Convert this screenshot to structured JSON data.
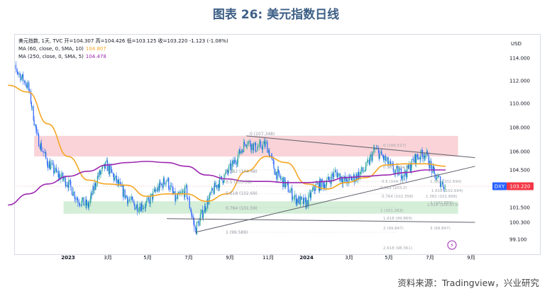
{
  "figure_title": "图表 26: 美元指数日线",
  "source": "资料来源：Tradingview，兴业研究",
  "legend": {
    "header": "美元指数, 1天, TVC  开=104.307  高=104.426  低=103.125  收=103.220  -1.123 (-1.08%)",
    "ma10_label": "MA (60, close, 0, SMA, 10)",
    "ma10_value": "104.807",
    "ma250_label": "MA (250, close, 0, SMA, 5)",
    "ma250_value": "104.478"
  },
  "colors": {
    "title": "#3d5f86",
    "up": "#26a69a",
    "down": "#2962ff",
    "ma60": "#f5a623",
    "ma250": "#9c27b0",
    "resistance_zone": "#f8cbd0",
    "support_zone": "#cdebd0",
    "price_badge": "#f23645",
    "fib": "#b2b5be"
  },
  "y_axis": {
    "unit": "USD",
    "ticks": [
      "114.000",
      "112.000",
      "110.000",
      "108.000",
      "106.000",
      "104.500",
      "103.220",
      "101.500",
      "100.300",
      "99.100"
    ]
  },
  "x_axis": {
    "ticks": [
      "2023",
      "3月",
      "5月",
      "7月",
      "9月",
      "11月",
      "2024",
      "3月",
      "5月",
      "7月",
      "9月"
    ]
  },
  "badges": {
    "symbol": "DXY",
    "last_price": "103.220"
  },
  "fib_left": {
    "labels": [
      "0 (107.348)",
      "0.382 (104.48)",
      "0.5 (103.59)",
      "0.618 (102.69)",
      "0.764 (101.59)",
      "1 (99.589)"
    ]
  },
  "fib_right": {
    "labels": [
      "0 (106.517)",
      "0.382 (104.9)",
      "0.5 (104.1)",
      "0.618 (103.2)",
      "0.764 (102.358)",
      "1 (101.263)",
      "1.382 (101.899)",
      "1.618 (100.673)",
      "1.618 (99.869)",
      "2 (99.847)",
      "2.618 (98.361)",
      "1.382 (102.694)",
      "1.618 (102.694)",
      "2 (101.899)",
      "3 (99.847)"
    ]
  },
  "chart_data": {
    "type": "candlestick",
    "title": "美元指数日线",
    "ylabel": "USD",
    "ylim": [
      99.1,
      114.3
    ],
    "x_labels": [
      "2023",
      "3月",
      "5月",
      "7月",
      "9月",
      "11月",
      "2024",
      "3月",
      "5月",
      "7月",
      "9月"
    ],
    "series": [
      {
        "name": "美元指数",
        "kind": "close",
        "points": [
          [
            "2022-10-01",
            113.5
          ],
          [
            "2022-10-15",
            112.9
          ],
          [
            "2022-11-01",
            111.5
          ],
          [
            "2022-11-15",
            107.2
          ],
          [
            "2022-12-01",
            105.1
          ],
          [
            "2022-12-15",
            104.2
          ],
          [
            "2023-01-01",
            103.5
          ],
          [
            "2023-01-15",
            102.2
          ],
          [
            "2023-02-01",
            101.6
          ],
          [
            "2023-02-15",
            103.9
          ],
          [
            "2023-03-01",
            104.9
          ],
          [
            "2023-03-15",
            103.7
          ],
          [
            "2023-04-01",
            102.3
          ],
          [
            "2023-04-15",
            101.6
          ],
          [
            "2023-05-01",
            101.7
          ],
          [
            "2023-05-15",
            102.8
          ],
          [
            "2023-06-01",
            103.8
          ],
          [
            "2023-06-15",
            102.1
          ],
          [
            "2023-07-01",
            102.9
          ],
          [
            "2023-07-15",
            99.7
          ],
          [
            "2023-08-01",
            101.8
          ],
          [
            "2023-08-15",
            103.2
          ],
          [
            "2023-09-01",
            104.2
          ],
          [
            "2023-09-15",
            105.3
          ],
          [
            "2023-10-01",
            106.9
          ],
          [
            "2023-10-15",
            106.3
          ],
          [
            "2023-11-01",
            106.6
          ],
          [
            "2023-11-15",
            104.3
          ],
          [
            "2023-12-01",
            103.3
          ],
          [
            "2023-12-15",
            102.2
          ],
          [
            "2024-01-01",
            101.8
          ],
          [
            "2024-01-15",
            103.2
          ],
          [
            "2024-02-01",
            103.5
          ],
          [
            "2024-02-15",
            104.3
          ],
          [
            "2024-03-01",
            103.6
          ],
          [
            "2024-03-15",
            103.9
          ],
          [
            "2024-04-01",
            104.6
          ],
          [
            "2024-04-15",
            106.2
          ],
          [
            "2024-05-01",
            105.3
          ],
          [
            "2024-05-15",
            104.4
          ],
          [
            "2024-06-01",
            104.2
          ],
          [
            "2024-06-15",
            105.4
          ],
          [
            "2024-07-01",
            105.9
          ],
          [
            "2024-07-15",
            104.1
          ],
          [
            "2024-08-01",
            103.2
          ]
        ]
      },
      {
        "name": "MA (60, close, 0, SMA, 10)",
        "kind": "ma60",
        "points": [
          [
            "2022-10-01",
            111.6
          ],
          [
            "2022-11-01",
            111.0
          ],
          [
            "2022-12-01",
            108.3
          ],
          [
            "2023-01-01",
            105.6
          ],
          [
            "2023-02-01",
            103.7
          ],
          [
            "2023-03-01",
            103.4
          ],
          [
            "2023-04-01",
            103.3
          ],
          [
            "2023-05-01",
            102.4
          ],
          [
            "2023-06-01",
            102.6
          ],
          [
            "2023-07-01",
            102.6
          ],
          [
            "2023-08-01",
            102.0
          ],
          [
            "2023-09-01",
            102.6
          ],
          [
            "2023-10-01",
            104.4
          ],
          [
            "2023-11-01",
            105.6
          ],
          [
            "2023-12-01",
            105.1
          ],
          [
            "2024-01-01",
            103.4
          ],
          [
            "2024-02-01",
            103.0
          ],
          [
            "2024-03-01",
            103.5
          ],
          [
            "2024-04-01",
            103.9
          ],
          [
            "2024-05-01",
            104.9
          ],
          [
            "2024-06-01",
            105.0
          ],
          [
            "2024-07-01",
            105.0
          ],
          [
            "2024-08-01",
            104.8
          ]
        ]
      },
      {
        "name": "MA (250, close, 0, SMA, 5)",
        "kind": "ma250",
        "points": [
          [
            "2022-10-01",
            101.7
          ],
          [
            "2022-11-01",
            102.6
          ],
          [
            "2022-12-01",
            103.4
          ],
          [
            "2023-01-01",
            104.0
          ],
          [
            "2023-02-01",
            104.4
          ],
          [
            "2023-03-01",
            104.9
          ],
          [
            "2023-04-01",
            105.1
          ],
          [
            "2023-05-01",
            105.2
          ],
          [
            "2023-06-01",
            105.1
          ],
          [
            "2023-07-01",
            104.8
          ],
          [
            "2023-08-01",
            104.1
          ],
          [
            "2023-09-01",
            103.8
          ],
          [
            "2023-10-01",
            103.6
          ],
          [
            "2023-11-01",
            103.6
          ],
          [
            "2023-12-01",
            103.5
          ],
          [
            "2024-01-01",
            103.5
          ],
          [
            "2024-02-01",
            103.6
          ],
          [
            "2024-03-01",
            103.9
          ],
          [
            "2024-04-01",
            104.0
          ],
          [
            "2024-05-01",
            104.1
          ],
          [
            "2024-06-01",
            104.3
          ],
          [
            "2024-07-01",
            104.5
          ],
          [
            "2024-08-01",
            104.5
          ]
        ]
      }
    ],
    "zones": [
      {
        "name": "resistance",
        "from": "2022-11-10",
        "to": "2024-08-20",
        "ylow": 105.6,
        "yhigh": 107.3
      },
      {
        "name": "support",
        "from": "2022-12-25",
        "to": "2024-08-20",
        "ylow": 101.0,
        "yhigh": 102.0
      }
    ],
    "trendlines": [
      {
        "name": "upper-trend",
        "from": [
          "2023-10-01",
          107.3
        ],
        "to": [
          "2024-09-15",
          105.5
        ]
      },
      {
        "name": "rising-trend",
        "from": [
          "2023-07-15",
          99.6
        ],
        "to": [
          "2024-09-15",
          104.8
        ]
      },
      {
        "name": "lower-line",
        "from": [
          "2023-06-01",
          100.6
        ],
        "to": [
          "2024-09-15",
          100.3
        ]
      }
    ]
  }
}
